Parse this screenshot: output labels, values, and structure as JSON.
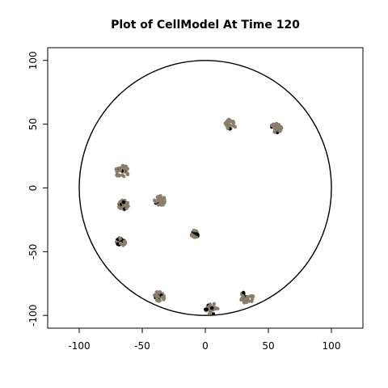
{
  "chart_data": {
    "type": "scatter",
    "title": "Plot of CellModel At Time 120",
    "xlabel": "",
    "ylabel": "",
    "xlim": [
      -125,
      125
    ],
    "ylim": [
      -110,
      110
    ],
    "x_ticks": [
      {
        "value": -100,
        "label": "-100"
      },
      {
        "value": -50,
        "label": "-50"
      },
      {
        "value": 0,
        "label": "0"
      },
      {
        "value": 50,
        "label": "50"
      },
      {
        "value": 100,
        "label": "100"
      }
    ],
    "y_ticks": [
      {
        "value": -100,
        "label": "-100"
      },
      {
        "value": -50,
        "label": "-50"
      },
      {
        "value": 0,
        "label": "0"
      },
      {
        "value": 50,
        "label": "50"
      },
      {
        "value": 100,
        "label": "100"
      }
    ],
    "grid": false,
    "boundary_circle": {
      "cx": 0,
      "cy": 0,
      "r": 100,
      "color": "#000000"
    },
    "colors": {
      "main": "#8b7e6a",
      "dark": "#000000"
    },
    "clusters": [
      {
        "x": 20,
        "y": 50,
        "spread": 4
      },
      {
        "x": 56,
        "y": 47,
        "spread": 4
      },
      {
        "x": -66,
        "y": 13,
        "spread": 5
      },
      {
        "x": -36,
        "y": -10,
        "spread": 4
      },
      {
        "x": -65,
        "y": -13,
        "spread": 4
      },
      {
        "x": -8,
        "y": -36,
        "spread": 3
      },
      {
        "x": -67,
        "y": -42,
        "spread": 3.5
      },
      {
        "x": -36,
        "y": -85,
        "spread": 4
      },
      {
        "x": 5,
        "y": -95,
        "spread": 4.5
      },
      {
        "x": 33,
        "y": -86,
        "spread": 5
      }
    ]
  }
}
